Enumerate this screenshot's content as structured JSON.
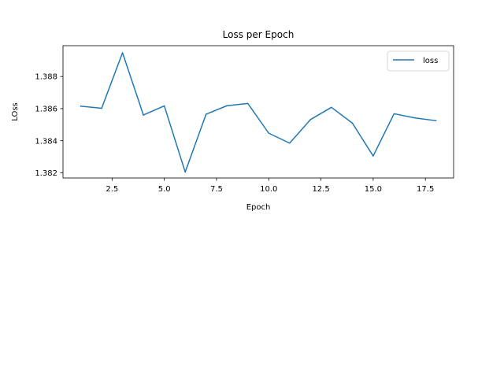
{
  "chart_data": {
    "type": "line",
    "title": "Loss per Epoch",
    "xlabel": "Epoch",
    "ylabel": "LOss",
    "xlim": [
      0.15,
      18.85
    ],
    "ylim": [
      1.38168,
      1.38992
    ],
    "xticks": [
      2.5,
      5.0,
      7.5,
      10.0,
      12.5,
      15.0,
      17.5
    ],
    "xtick_labels": [
      "2.5",
      "5.0",
      "7.5",
      "10.0",
      "12.5",
      "15.0",
      "17.5"
    ],
    "yticks": [
      1.382,
      1.384,
      1.386,
      1.388
    ],
    "ytick_labels": [
      "1.382",
      "1.384",
      "1.386",
      "1.388"
    ],
    "grid": false,
    "legend_position": "top-right",
    "series": [
      {
        "name": "loss",
        "color": "#1f77b4",
        "x": [
          1,
          2,
          3,
          4,
          5,
          6,
          7,
          8,
          9,
          10,
          11,
          12,
          13,
          14,
          15,
          16,
          17,
          18
        ],
        "y": [
          1.38615,
          1.38602,
          1.38948,
          1.3856,
          1.38617,
          1.38205,
          1.38565,
          1.38618,
          1.38632,
          1.38447,
          1.38385,
          1.38532,
          1.38608,
          1.3851,
          1.38305,
          1.38568,
          1.38542,
          1.38525
        ]
      }
    ]
  }
}
